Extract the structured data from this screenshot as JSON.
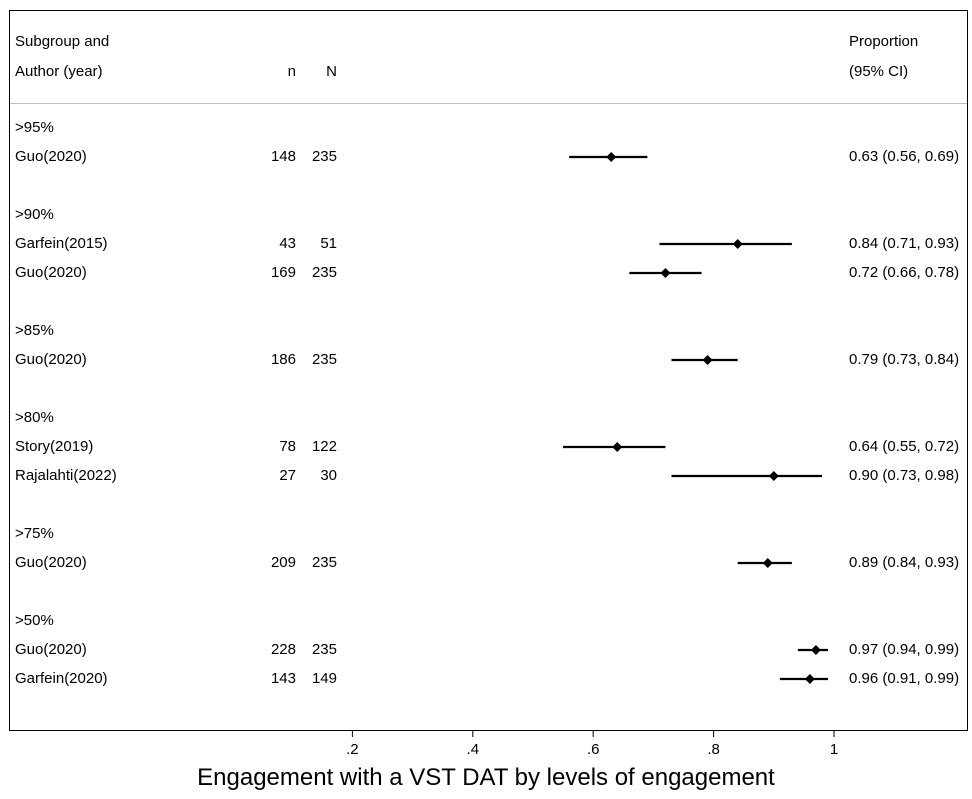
{
  "chart_data": {
    "type": "forest",
    "xlabel": "Engagement with a VST DAT by levels of engagement",
    "xticks": [
      {
        "value": 0.2,
        "label": ".2"
      },
      {
        "value": 0.4,
        "label": ".4"
      },
      {
        "value": 0.6,
        "label": ".6"
      },
      {
        "value": 0.8,
        "label": ".8"
      },
      {
        "value": 1.0,
        "label": "1"
      }
    ],
    "headers": {
      "study_line1": "Subgroup and",
      "study_line2": "Author (year)",
      "n": "n",
      "N": "N",
      "effect_line1": "Proportion",
      "effect_line2": "(95% CI)"
    },
    "groups": [
      {
        "label": ">95%",
        "studies": [
          {
            "author": "Guo(2020)",
            "n": "148",
            "N": "235",
            "estimate": 0.63,
            "ci_low": 0.56,
            "ci_high": 0.69,
            "ci_text": "0.63 (0.56, 0.69)"
          }
        ]
      },
      {
        "label": ">90%",
        "studies": [
          {
            "author": "Garfein(2015)",
            "n": "43",
            "N": "51",
            "estimate": 0.84,
            "ci_low": 0.71,
            "ci_high": 0.93,
            "ci_text": "0.84 (0.71, 0.93)"
          },
          {
            "author": "Guo(2020)",
            "n": "169",
            "N": "235",
            "estimate": 0.72,
            "ci_low": 0.66,
            "ci_high": 0.78,
            "ci_text": "0.72 (0.66, 0.78)"
          }
        ]
      },
      {
        "label": ">85%",
        "studies": [
          {
            "author": "Guo(2020)",
            "n": "186",
            "N": "235",
            "estimate": 0.79,
            "ci_low": 0.73,
            "ci_high": 0.84,
            "ci_text": "0.79 (0.73, 0.84)"
          }
        ]
      },
      {
        "label": ">80%",
        "studies": [
          {
            "author": "Story(2019)",
            "n": "78",
            "N": "122",
            "estimate": 0.64,
            "ci_low": 0.55,
            "ci_high": 0.72,
            "ci_text": "0.64 (0.55, 0.72)"
          },
          {
            "author": "Rajalahti(2022)",
            "n": "27",
            "N": "30",
            "estimate": 0.9,
            "ci_low": 0.73,
            "ci_high": 0.98,
            "ci_text": "0.90 (0.73, 0.98)"
          }
        ]
      },
      {
        "label": ">75%",
        "studies": [
          {
            "author": "Guo(2020)",
            "n": "209",
            "N": "235",
            "estimate": 0.89,
            "ci_low": 0.84,
            "ci_high": 0.93,
            "ci_text": "0.89 (0.84, 0.93)"
          }
        ]
      },
      {
        "label": ">50%",
        "studies": [
          {
            "author": "Guo(2020)",
            "n": "228",
            "N": "235",
            "estimate": 0.97,
            "ci_low": 0.94,
            "ci_high": 0.99,
            "ci_text": "0.97 (0.94, 0.99)"
          },
          {
            "author": "Garfein(2020)",
            "n": "143",
            "N": "149",
            "estimate": 0.96,
            "ci_low": 0.91,
            "ci_high": 0.99,
            "ci_text": "0.96 (0.91, 0.99)"
          }
        ]
      }
    ]
  }
}
